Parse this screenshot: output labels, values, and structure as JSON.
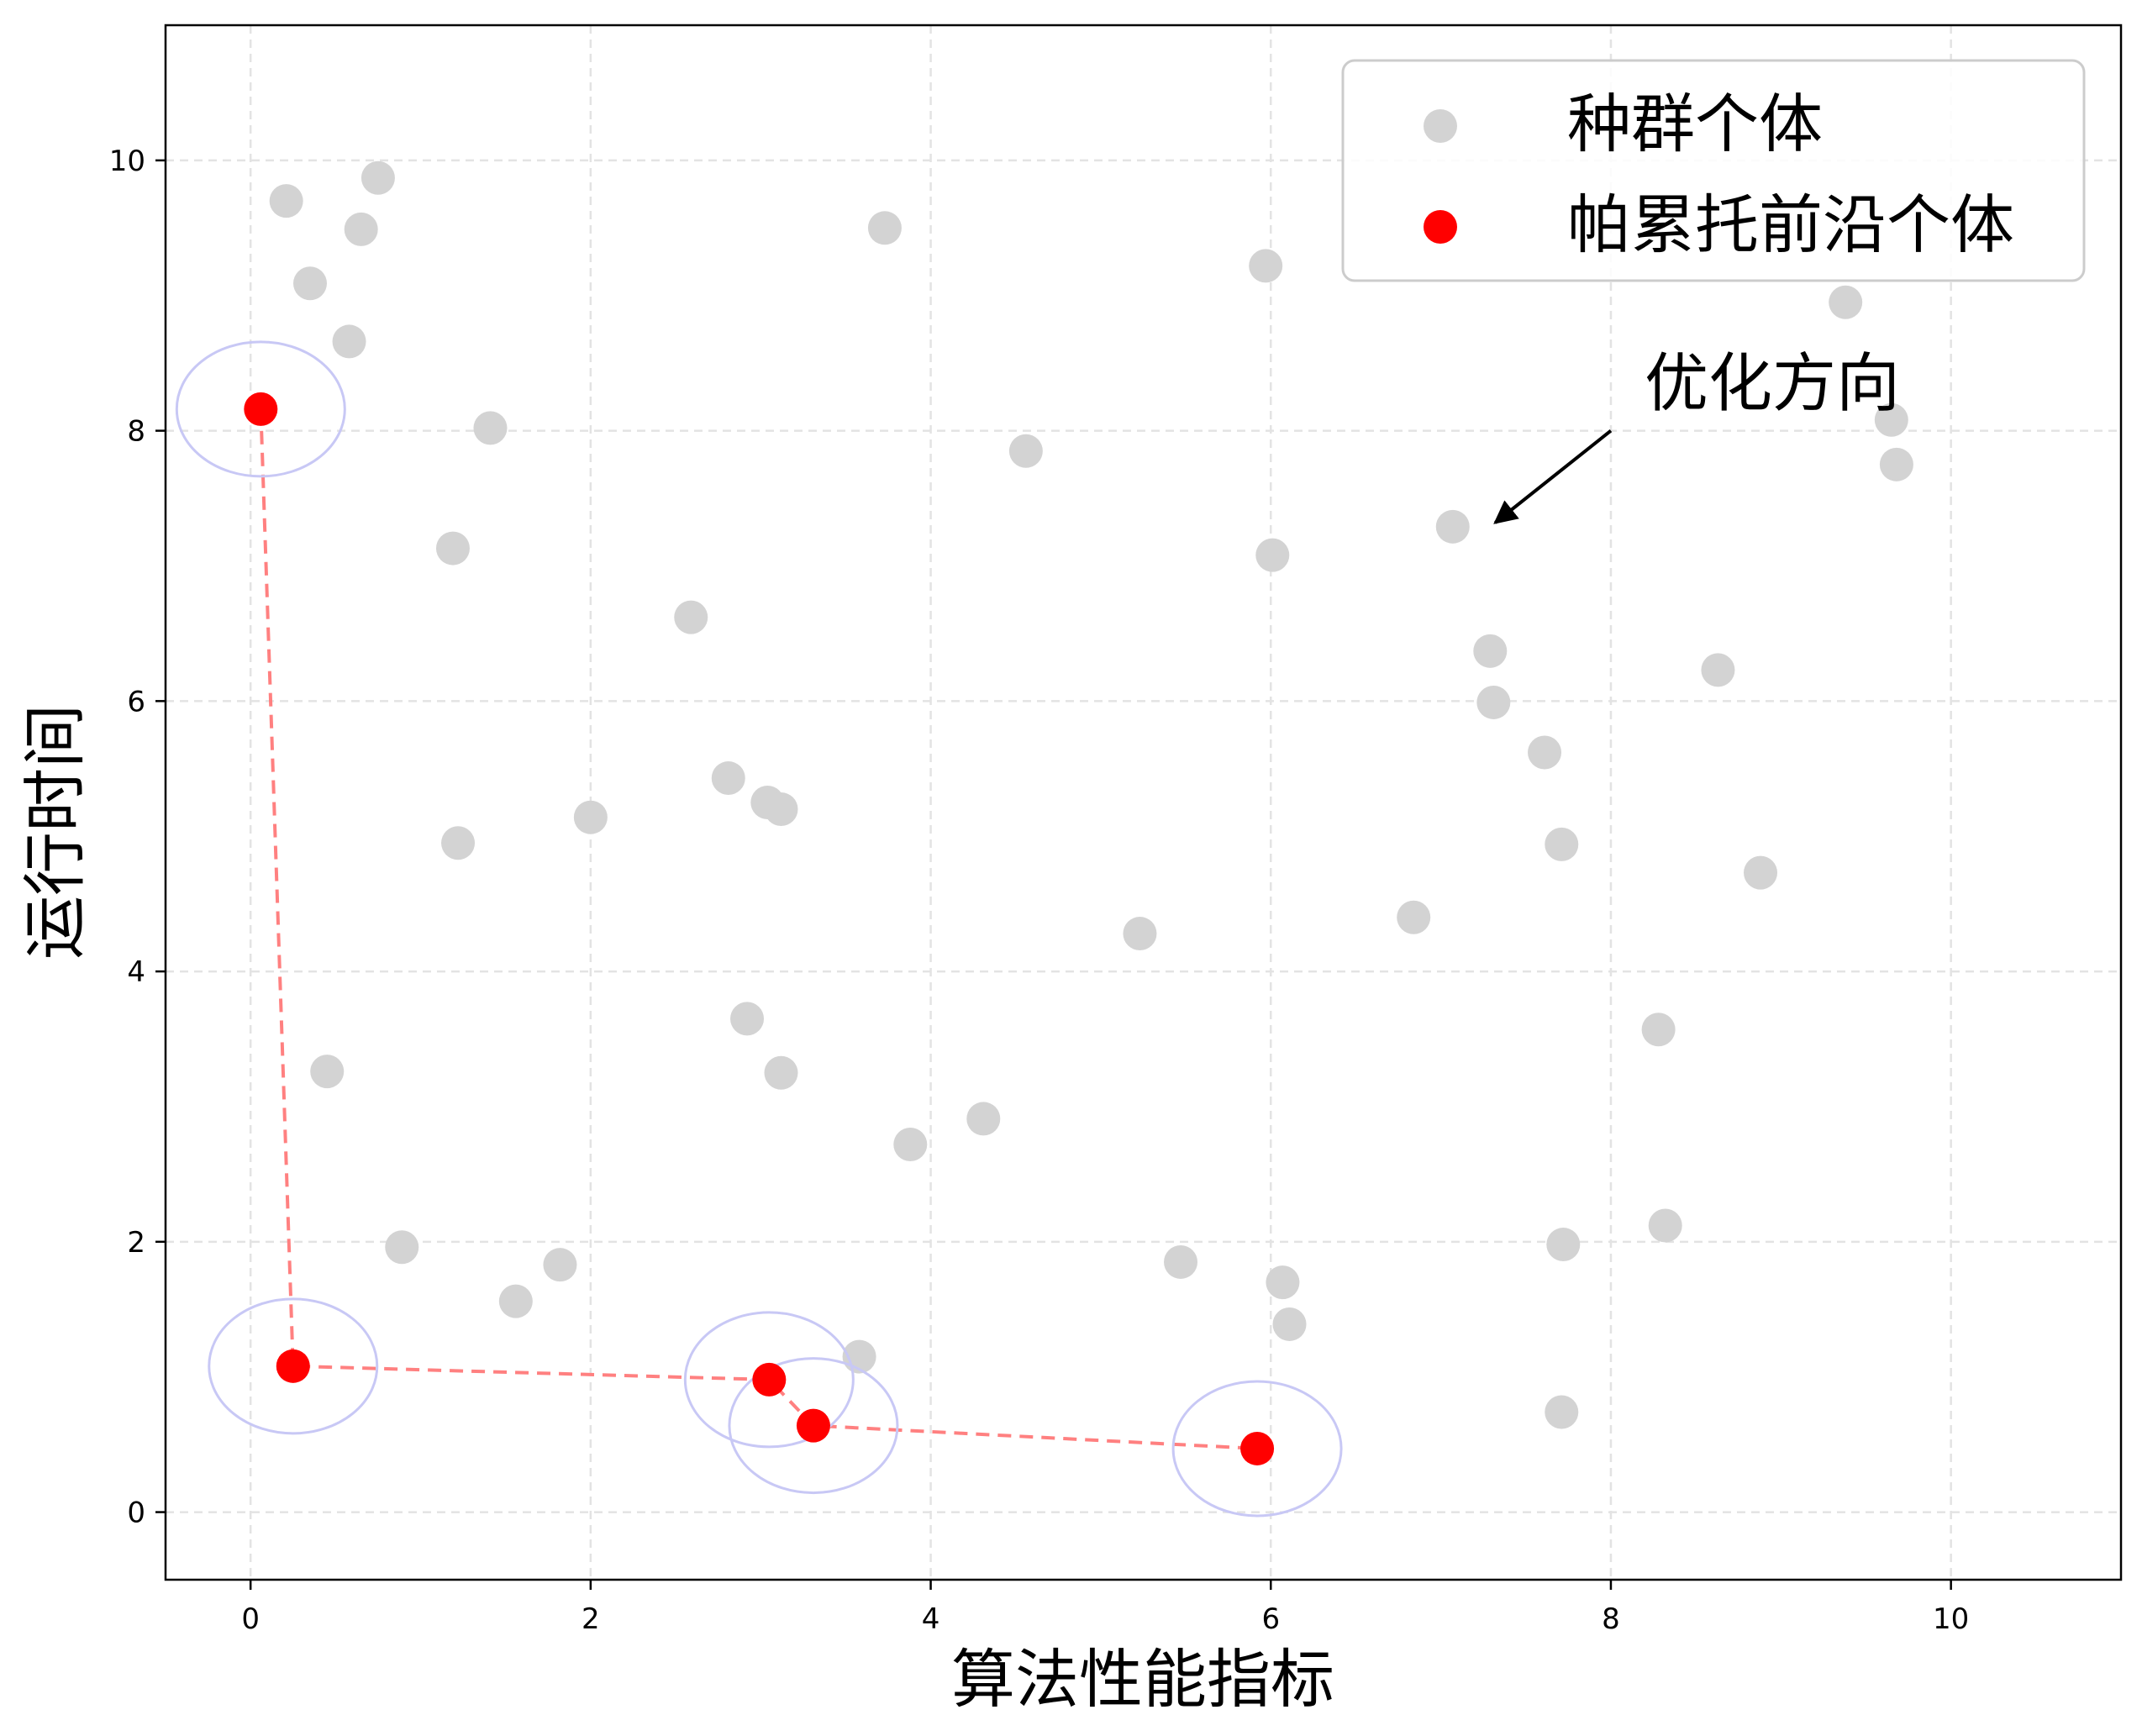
{
  "chart_data": {
    "type": "scatter",
    "xlabel": "算法性能指标",
    "ylabel": "运行时间",
    "xlim": [
      -0.5,
      11.0
    ],
    "ylim": [
      -0.5,
      11.0
    ],
    "xticks": [
      0,
      2,
      4,
      6,
      8,
      10
    ],
    "yticks": [
      0,
      2,
      4,
      6,
      8,
      10
    ],
    "grid": true,
    "legend_position": "top-right",
    "colors": {
      "population": "#d3d3d3",
      "pareto": "#ff0000",
      "pareto_line": "#ff8080",
      "halo": "#c8c8f5",
      "axes": "#000000",
      "grid": "#e3e3e3"
    },
    "series": [
      {
        "name": "种群个体",
        "points": [
          [
            0.21,
            9.7
          ],
          [
            0.35,
            9.09
          ],
          [
            0.58,
            8.66
          ],
          [
            0.65,
            9.49
          ],
          [
            0.75,
            9.87
          ],
          [
            1.19,
            7.13
          ],
          [
            1.41,
            8.02
          ],
          [
            1.22,
            4.95
          ],
          [
            0.45,
            3.26
          ],
          [
            0.89,
            1.96
          ],
          [
            1.56,
            1.56
          ],
          [
            1.82,
            1.83
          ],
          [
            2.0,
            5.14
          ],
          [
            2.59,
            6.62
          ],
          [
            2.81,
            5.43
          ],
          [
            3.04,
            5.25
          ],
          [
            3.12,
            5.2
          ],
          [
            2.92,
            3.65
          ],
          [
            3.12,
            3.25
          ],
          [
            3.58,
            1.15
          ],
          [
            3.73,
            9.5
          ],
          [
            3.88,
            2.72
          ],
          [
            4.31,
            2.91
          ],
          [
            4.56,
            7.85
          ],
          [
            5.23,
            4.28
          ],
          [
            5.47,
            1.85
          ],
          [
            5.97,
            9.22
          ],
          [
            6.01,
            7.08
          ],
          [
            6.07,
            1.7
          ],
          [
            6.11,
            1.39
          ],
          [
            6.84,
            4.4
          ],
          [
            7.07,
            7.29
          ],
          [
            7.29,
            6.37
          ],
          [
            7.31,
            5.99
          ],
          [
            7.61,
            5.62
          ],
          [
            7.71,
            4.94
          ],
          [
            7.72,
            1.98
          ],
          [
            7.71,
            0.74
          ],
          [
            8.28,
            3.57
          ],
          [
            8.32,
            2.12
          ],
          [
            8.63,
            6.23
          ],
          [
            8.88,
            4.73
          ],
          [
            9.38,
            8.95
          ],
          [
            9.65,
            8.08
          ],
          [
            9.68,
            7.75
          ]
        ]
      },
      {
        "name": "帕累托前沿个体",
        "points": [
          [
            0.06,
            8.16
          ],
          [
            0.25,
            1.08
          ],
          [
            3.05,
            0.98
          ],
          [
            3.31,
            0.64
          ],
          [
            5.92,
            0.47
          ]
        ]
      }
    ],
    "annotations": [
      {
        "text": "优化方向",
        "from": [
          8.0,
          8.0
        ],
        "to": [
          7.32,
          7.32
        ]
      }
    ]
  }
}
